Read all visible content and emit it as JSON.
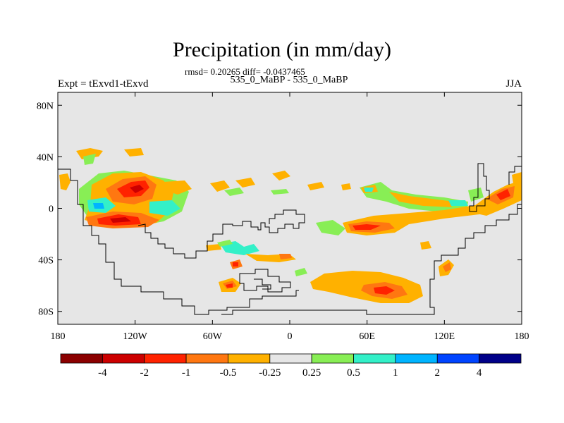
{
  "chart_data": {
    "type": "heatmap",
    "title": "Precipitation (in mm/day)",
    "stats_text": "rmsd= 0.20265 diff= -0.0437465",
    "subtitle": "535_0_MaBP - 535_0_MaBP",
    "left_label": "Expt = tExvd1-tExvd",
    "right_label": "JJA",
    "x_ticks": [
      "180",
      "120W",
      "60W",
      "0",
      "60E",
      "120E",
      "180"
    ],
    "y_ticks": [
      "80N",
      "40N",
      "0",
      "40S",
      "80S"
    ],
    "xlim": [
      -180,
      180
    ],
    "ylim": [
      -90,
      90
    ],
    "levels": [
      "-4",
      "-2",
      "-1",
      "-0.5",
      "-0.25",
      "0.25",
      "0.5",
      "1",
      "2",
      "4"
    ],
    "colors": [
      "#8b0000",
      "#cc0000",
      "#ff2200",
      "#ff7711",
      "#ffb100",
      "#e6e6e6",
      "#88ee55",
      "#33f0c8",
      "#00b4ff",
      "#0044ff",
      "#000088"
    ],
    "background_color": "#e6e6e6"
  }
}
